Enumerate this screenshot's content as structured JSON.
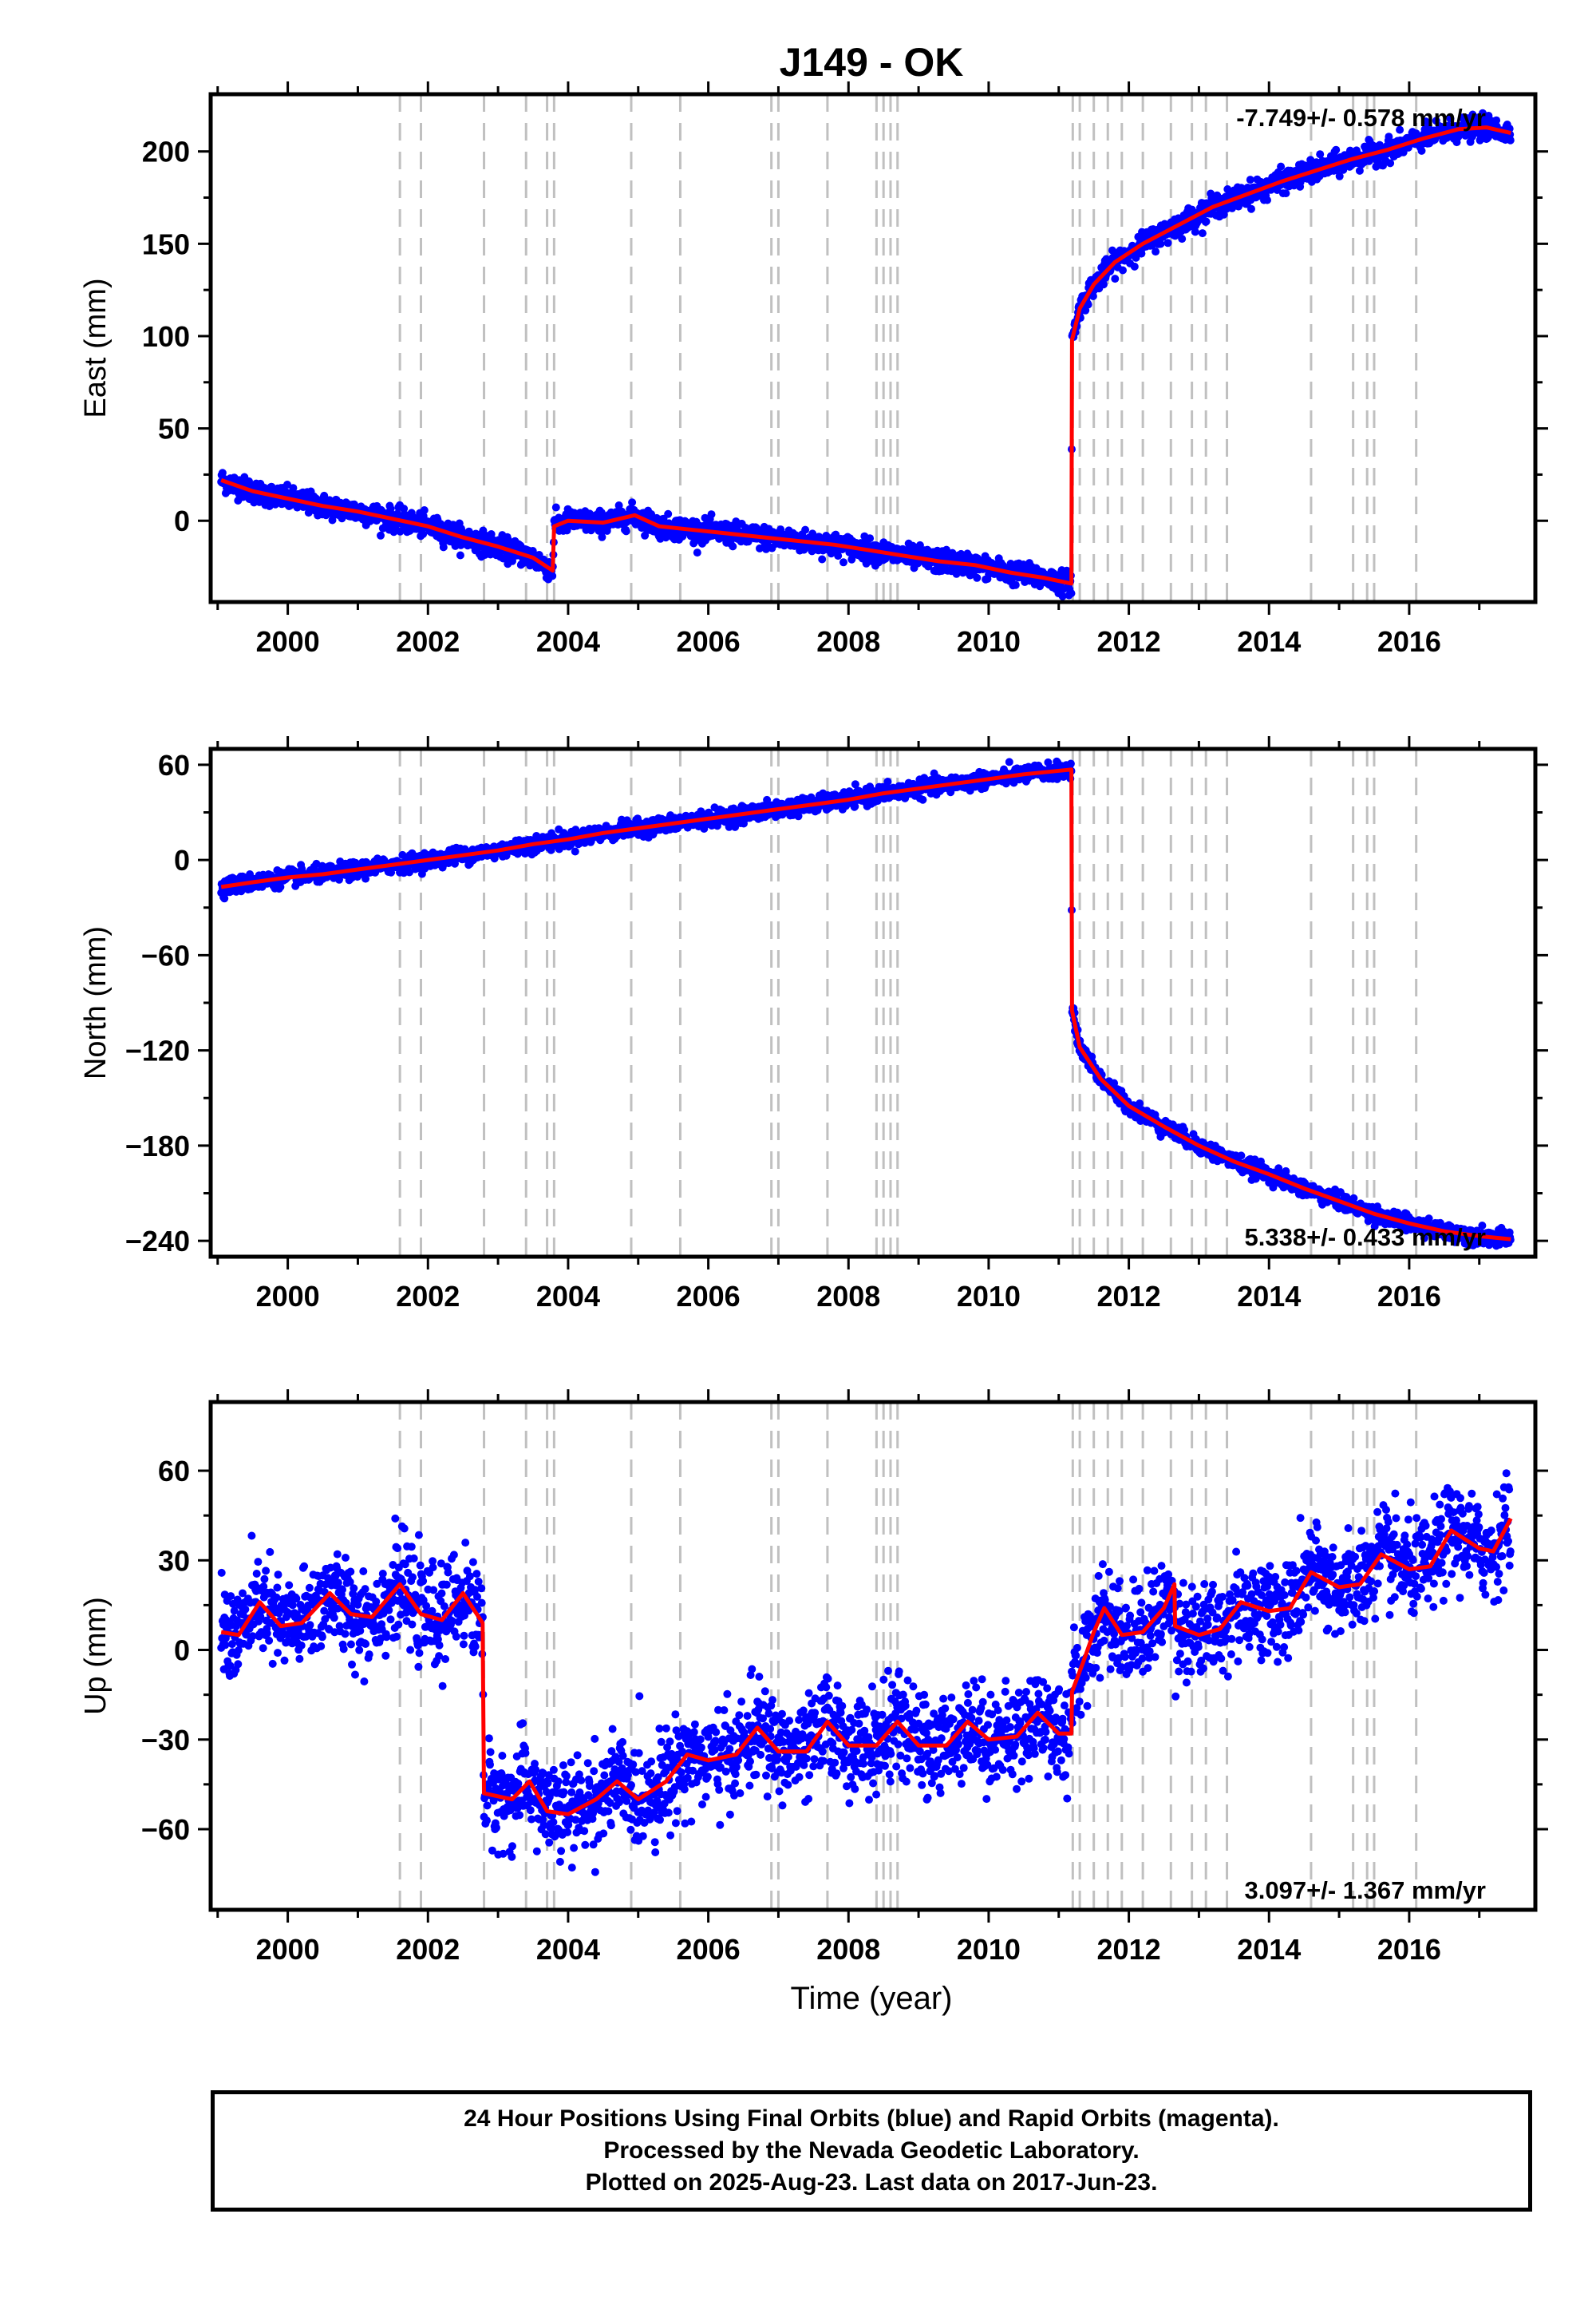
{
  "title": "J149 - OK",
  "xlabel": "Time (year)",
  "colors": {
    "points": "#0000ff",
    "model": "#ff0000",
    "event_lines": "#c0c0c0",
    "frame": "#000000"
  },
  "event_lines_x": [
    2001.6,
    2001.9,
    2002.8,
    2003.4,
    2003.7,
    2003.8,
    2004.9,
    2005.6,
    2006.9,
    2007.0,
    2007.7,
    2008.4,
    2008.5,
    2008.6,
    2008.7,
    2011.2,
    2011.3,
    2011.5,
    2011.7,
    2011.9,
    2012.2,
    2012.6,
    2012.9,
    2013.1,
    2013.4,
    2014.6,
    2015.2,
    2015.4,
    2015.5,
    2016.1
  ],
  "chart_data": [
    {
      "type": "scatter",
      "ylabel": "East (mm)",
      "xlim": [
        1998.9,
        2017.8
      ],
      "ylim": [
        -44,
        231
      ],
      "x_ticks": [
        "2000",
        "2002",
        "2004",
        "2006",
        "2008",
        "2010",
        "2012",
        "2014",
        "2016"
      ],
      "y_ticks": [
        "0",
        "50",
        "100",
        "150",
        "200"
      ],
      "y_tick_values": [
        0,
        50,
        100,
        150,
        200
      ],
      "rate_text": "-7.749+/- 0.578 mm/yr",
      "rate_position": "top-right",
      "grid": false,
      "model_points": [
        [
          1999.05,
          22
        ],
        [
          1999.5,
          16
        ],
        [
          2000.0,
          12
        ],
        [
          2000.5,
          8
        ],
        [
          2001.0,
          5
        ],
        [
          2001.5,
          1
        ],
        [
          2002.0,
          -3
        ],
        [
          2002.5,
          -9
        ],
        [
          2003.0,
          -14
        ],
        [
          2003.5,
          -20
        ],
        [
          2003.78,
          -27
        ],
        [
          2003.8,
          -3
        ],
        [
          2004.0,
          0
        ],
        [
          2004.5,
          -1
        ],
        [
          2004.95,
          3
        ],
        [
          2005.3,
          -3
        ],
        [
          2005.8,
          -5
        ],
        [
          2006.3,
          -7
        ],
        [
          2006.8,
          -9
        ],
        [
          2007.3,
          -11
        ],
        [
          2007.8,
          -13
        ],
        [
          2008.3,
          -16
        ],
        [
          2008.8,
          -19
        ],
        [
          2009.3,
          -22
        ],
        [
          2009.8,
          -24
        ],
        [
          2010.3,
          -28
        ],
        [
          2010.8,
          -31
        ],
        [
          2011.18,
          -34
        ],
        [
          2011.19,
          98
        ],
        [
          2011.3,
          115
        ],
        [
          2011.5,
          128
        ],
        [
          2011.8,
          140
        ],
        [
          2012.2,
          150
        ],
        [
          2012.7,
          160
        ],
        [
          2013.2,
          170
        ],
        [
          2013.7,
          177
        ],
        [
          2014.2,
          184
        ],
        [
          2014.7,
          190
        ],
        [
          2015.2,
          196
        ],
        [
          2015.7,
          201
        ],
        [
          2016.2,
          207
        ],
        [
          2016.7,
          212
        ],
        [
          2017.1,
          213
        ],
        [
          2017.45,
          210
        ]
      ],
      "scatter_sigma_mm": 3
    },
    {
      "type": "scatter",
      "ylabel": "North (mm)",
      "xlim": [
        1998.9,
        2017.8
      ],
      "ylim": [
        -250,
        70
      ],
      "x_ticks": [
        "2000",
        "2002",
        "2004",
        "2006",
        "2008",
        "2010",
        "2012",
        "2014",
        "2016"
      ],
      "y_ticks": [
        "60",
        "0",
        "−60",
        "−120",
        "−180",
        "−240"
      ],
      "y_tick_values": [
        60,
        0,
        -60,
        -120,
        -180,
        -240
      ],
      "rate_text": "5.338+/- 0.433 mm/yr",
      "rate_position": "bottom-right",
      "grid": false,
      "model_points": [
        [
          1999.05,
          -17
        ],
        [
          1999.5,
          -14
        ],
        [
          2000.0,
          -11
        ],
        [
          2000.5,
          -9
        ],
        [
          2001.0,
          -6
        ],
        [
          2001.5,
          -3
        ],
        [
          2002.0,
          0
        ],
        [
          2002.5,
          3
        ],
        [
          2003.0,
          6
        ],
        [
          2003.5,
          10
        ],
        [
          2004.0,
          13
        ],
        [
          2004.5,
          17
        ],
        [
          2005.0,
          20
        ],
        [
          2005.5,
          23
        ],
        [
          2006.0,
          26
        ],
        [
          2006.5,
          29
        ],
        [
          2007.0,
          32
        ],
        [
          2007.5,
          35
        ],
        [
          2008.0,
          38
        ],
        [
          2008.5,
          42
        ],
        [
          2009.0,
          45
        ],
        [
          2009.5,
          48
        ],
        [
          2010.0,
          51
        ],
        [
          2010.5,
          54
        ],
        [
          2011.18,
          57
        ],
        [
          2011.19,
          -95
        ],
        [
          2011.3,
          -118
        ],
        [
          2011.6,
          -138
        ],
        [
          2012.0,
          -155
        ],
        [
          2012.5,
          -168
        ],
        [
          2013.0,
          -180
        ],
        [
          2013.5,
          -190
        ],
        [
          2014.0,
          -198
        ],
        [
          2014.5,
          -207
        ],
        [
          2015.0,
          -215
        ],
        [
          2015.5,
          -223
        ],
        [
          2016.0,
          -229
        ],
        [
          2016.5,
          -234
        ],
        [
          2017.0,
          -237
        ],
        [
          2017.45,
          -239
        ]
      ],
      "scatter_sigma_mm": 2.5
    },
    {
      "type": "scatter",
      "ylabel": "Up (mm)",
      "xlim": [
        1998.9,
        2017.8
      ],
      "ylim": [
        -87,
        83
      ],
      "x_ticks": [
        "2000",
        "2002",
        "2004",
        "2006",
        "2008",
        "2010",
        "2012",
        "2014",
        "2016"
      ],
      "y_ticks": [
        "60",
        "30",
        "0",
        "−30",
        "−60"
      ],
      "y_tick_values": [
        60,
        30,
        0,
        -30,
        -60
      ],
      "rate_text": "3.097+/- 1.367 mm/yr",
      "rate_position": "bottom-right",
      "grid": false,
      "model_points": [
        [
          1999.05,
          6
        ],
        [
          1999.3,
          5
        ],
        [
          1999.6,
          16
        ],
        [
          1999.9,
          8
        ],
        [
          2000.2,
          9
        ],
        [
          2000.6,
          19
        ],
        [
          2000.9,
          12
        ],
        [
          2001.2,
          11
        ],
        [
          2001.6,
          22
        ],
        [
          2001.9,
          12
        ],
        [
          2002.2,
          10
        ],
        [
          2002.5,
          19
        ],
        [
          2002.78,
          9
        ],
        [
          2002.8,
          -48
        ],
        [
          2003.2,
          -50
        ],
        [
          2003.45,
          -44
        ],
        [
          2003.7,
          -54
        ],
        [
          2004.0,
          -55
        ],
        [
          2004.4,
          -50
        ],
        [
          2004.7,
          -44
        ],
        [
          2005.0,
          -50
        ],
        [
          2005.4,
          -44
        ],
        [
          2005.7,
          -35
        ],
        [
          2006.0,
          -37
        ],
        [
          2006.4,
          -35
        ],
        [
          2006.7,
          -26
        ],
        [
          2007.0,
          -34
        ],
        [
          2007.4,
          -34
        ],
        [
          2007.7,
          -24
        ],
        [
          2008.0,
          -32
        ],
        [
          2008.4,
          -32
        ],
        [
          2008.7,
          -24
        ],
        [
          2009.0,
          -32
        ],
        [
          2009.4,
          -32
        ],
        [
          2009.7,
          -24
        ],
        [
          2010.0,
          -30
        ],
        [
          2010.4,
          -29
        ],
        [
          2010.7,
          -21
        ],
        [
          2011.0,
          -28
        ],
        [
          2011.18,
          -28
        ],
        [
          2011.19,
          -14
        ],
        [
          2011.35,
          -4
        ],
        [
          2011.5,
          6
        ],
        [
          2011.65,
          14
        ],
        [
          2011.9,
          5
        ],
        [
          2012.2,
          6
        ],
        [
          2012.5,
          14
        ],
        [
          2012.65,
          22
        ],
        [
          2012.66,
          8
        ],
        [
          2013.0,
          5
        ],
        [
          2013.3,
          7
        ],
        [
          2013.6,
          16
        ],
        [
          2014.0,
          13
        ],
        [
          2014.3,
          14
        ],
        [
          2014.6,
          26
        ],
        [
          2015.0,
          21
        ],
        [
          2015.3,
          22
        ],
        [
          2015.6,
          32
        ],
        [
          2016.0,
          27
        ],
        [
          2016.3,
          28
        ],
        [
          2016.6,
          40
        ],
        [
          2017.0,
          34
        ],
        [
          2017.2,
          33
        ],
        [
          2017.45,
          44
        ]
      ],
      "scatter_sigma_mm": 8
    }
  ],
  "caption": {
    "line1": "24 Hour Positions Using Final Orbits (blue) and Rapid Orbits (magenta).",
    "line2": "Processed by the Nevada Geodetic Laboratory.",
    "line3": "Plotted on 2025-Aug-23. Last data on 2017-Jun-23."
  }
}
